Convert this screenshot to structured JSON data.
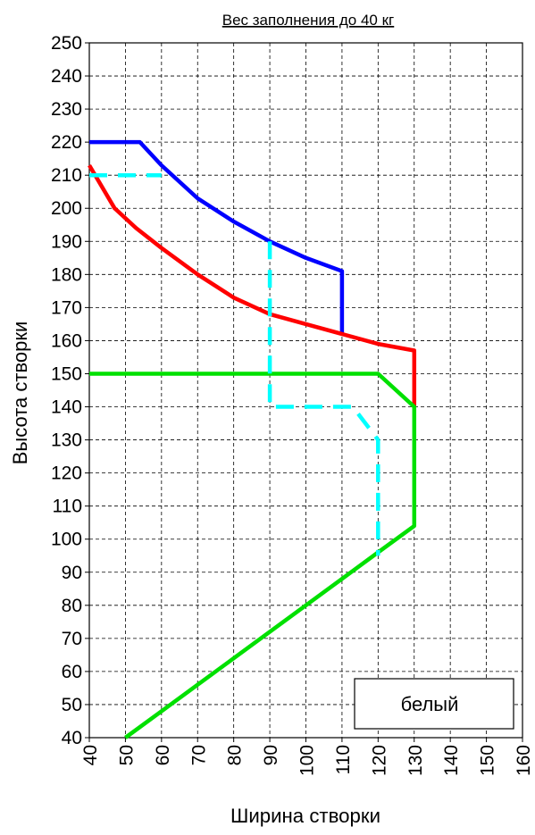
{
  "chart_data": {
    "type": "line",
    "title": "Вес заполнения до 40 кг",
    "xlabel": "Ширина створки",
    "ylabel": "Высота створки",
    "xlim": [
      40,
      160
    ],
    "ylim": [
      40,
      250
    ],
    "x_ticks": [
      40,
      50,
      60,
      70,
      80,
      90,
      100,
      110,
      120,
      130,
      140,
      150,
      160
    ],
    "y_ticks": [
      40,
      50,
      60,
      70,
      80,
      90,
      100,
      110,
      120,
      130,
      140,
      150,
      160,
      170,
      180,
      190,
      200,
      210,
      220,
      230,
      240,
      250
    ],
    "grid": true,
    "legend": {
      "label": "белый",
      "placement": "bottom-right"
    },
    "series": [
      {
        "color": "#0000ff",
        "style": "solid",
        "points": [
          [
            40,
            220
          ],
          [
            54,
            220
          ],
          [
            60,
            213
          ],
          [
            70,
            203
          ],
          [
            80,
            196
          ],
          [
            90,
            190
          ],
          [
            100,
            185
          ],
          [
            110,
            181
          ],
          [
            110,
            162
          ]
        ]
      },
      {
        "color": "#ff0000",
        "style": "solid",
        "points": [
          [
            40,
            213
          ],
          [
            47,
            200
          ],
          [
            53,
            194
          ],
          [
            60,
            188
          ],
          [
            70,
            180
          ],
          [
            80,
            173
          ],
          [
            90,
            168
          ],
          [
            100,
            165
          ],
          [
            110,
            162
          ],
          [
            120,
            159
          ],
          [
            130,
            157
          ],
          [
            130,
            140
          ]
        ]
      },
      {
        "color": "#00e000",
        "style": "solid",
        "points": [
          [
            40,
            150
          ],
          [
            120,
            150
          ],
          [
            130,
            140
          ],
          [
            130,
            104
          ],
          [
            120,
            96
          ],
          [
            110,
            88
          ],
          [
            100,
            80
          ],
          [
            90,
            72
          ],
          [
            80,
            64
          ],
          [
            70,
            56
          ],
          [
            60,
            48
          ],
          [
            50,
            40
          ]
        ]
      },
      {
        "color": "#00ffff",
        "style": "dashed",
        "points": [
          [
            40,
            210
          ],
          [
            60,
            210
          ]
        ]
      },
      {
        "color": "#00ffff",
        "style": "dashed",
        "points": [
          [
            90,
            190
          ],
          [
            90,
            140
          ],
          [
            113,
            140
          ],
          [
            120,
            130
          ],
          [
            120,
            95
          ]
        ]
      }
    ]
  }
}
